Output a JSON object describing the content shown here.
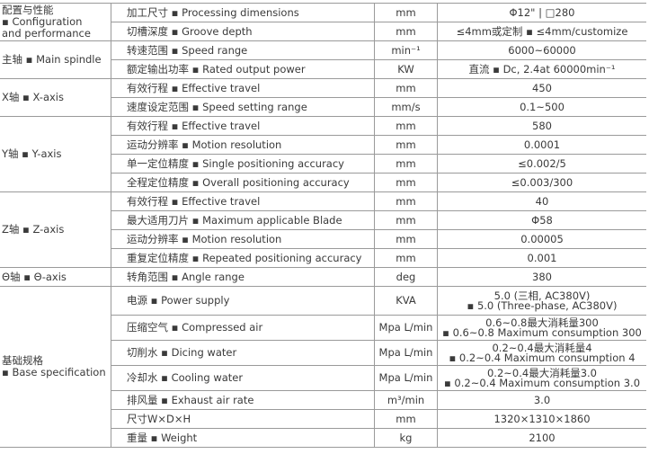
{
  "groups": [
    {
      "category": "配置与性能\n▪ Configuration\nand performance",
      "rows": [
        {
          "item": "加工尺寸 ▪ Processing dimensions",
          "unit": "mm",
          "value": "Φ12\" | □280"
        },
        {
          "item": "切槽深度 ▪ Groove depth",
          "unit": "mm",
          "value": "≤4mm或定制 ▪ ≤4mm/customize"
        }
      ]
    },
    {
      "category": "主轴 ▪ Main spindle",
      "rows": [
        {
          "item": "转速范围 ▪ Speed range",
          "unit": "min⁻¹",
          "value": "6000~60000"
        },
        {
          "item": "额定输出功率 ▪ Rated output power",
          "unit": "KW",
          "value": "直流 ▪ Dc, 2.4at 60000min⁻¹"
        }
      ]
    },
    {
      "category": "X轴 ▪ X-axis",
      "rows": [
        {
          "item": "有效行程 ▪ Effective travel",
          "unit": "mm",
          "value": "450"
        },
        {
          "item": "速度设定范围 ▪ Speed setting range",
          "unit": "mm/s",
          "value": "0.1~500"
        }
      ]
    },
    {
      "category": "Y轴 ▪ Y-axis",
      "rows": [
        {
          "item": "有效行程 ▪ Effective travel",
          "unit": "mm",
          "value": "580"
        },
        {
          "item": "运动分辨率 ▪ Motion resolution",
          "unit": "mm",
          "value": "0.0001"
        },
        {
          "item": "单一定位精度 ▪ Single positioning accuracy",
          "unit": "mm",
          "value": "≤0.002/5"
        },
        {
          "item": "全程定位精度 ▪ Overall positioning accuracy",
          "unit": "mm",
          "value": "≤0.003/300"
        }
      ]
    },
    {
      "category": "Z轴 ▪ Z-axis",
      "rows": [
        {
          "item": "有效行程 ▪ Effective travel",
          "unit": "mm",
          "value": "40"
        },
        {
          "item": "最大适用刀片 ▪ Maximum applicable Blade",
          "unit": "mm",
          "value": "Φ58"
        },
        {
          "item": "运动分辨率 ▪ Motion resolution",
          "unit": "mm",
          "value": "0.00005"
        },
        {
          "item": "重复定位精度 ▪ Repeated positioning accuracy",
          "unit": "mm",
          "value": "0.001"
        }
      ]
    },
    {
      "category": "Θ轴 ▪ Θ-axis",
      "rows": [
        {
          "item": "转角范围 ▪ Angle range",
          "unit": "deg",
          "value": "380"
        }
      ]
    },
    {
      "category": "基础规格\n▪ Base specification",
      "rows": [
        {
          "item": "电源 ▪ Power supply",
          "unit": "KVA",
          "value": "5.0 (三相, AC380V)\n▪ 5.0 (Three-phase, AC380V)"
        },
        {
          "item": "压缩空气 ▪ Compressed air",
          "unit": "Mpa L/min",
          "value": "0.6~0.8最大消耗量300\n▪ 0.6~0.8 Maximum consumption 300"
        },
        {
          "item": "切削水 ▪ Dicing water",
          "unit": "Mpa L/min",
          "value": "0.2~0.4最大消耗量4\n▪ 0.2~0.4 Maximum consumption 4"
        },
        {
          "item": "冷却水 ▪ Cooling water",
          "unit": "Mpa L/min",
          "value": "0.2~0.4最大消耗量3.0\n▪ 0.2~0.4 Maximum consumption 3.0"
        },
        {
          "item": "排风量 ▪ Exhaust air rate",
          "unit": "m³/min",
          "value": "3.0"
        },
        {
          "item": "尺寸W×D×H",
          "unit": "mm",
          "value": "1320×1310×1860"
        },
        {
          "item": "重量 ▪ Weight",
          "unit": "kg",
          "value": "2100"
        }
      ]
    }
  ]
}
